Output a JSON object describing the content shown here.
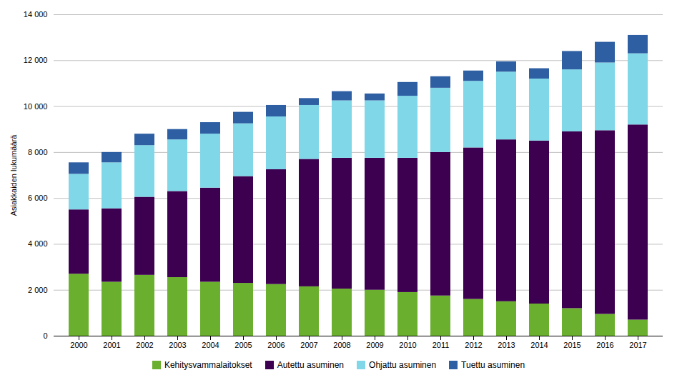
{
  "chart_data": {
    "type": "bar",
    "stacked": true,
    "ylabel": "Asiakkaiden lukumäärä",
    "categories": [
      "2000",
      "2001",
      "2002",
      "2003",
      "2004",
      "2005",
      "2006",
      "2007",
      "2008",
      "2009",
      "2010",
      "2011",
      "2012",
      "2013",
      "2014",
      "2015",
      "2016",
      "2017"
    ],
    "series": [
      {
        "name": "Kehitysvammalaitokset",
        "color": "#6aaf2e",
        "values": [
          2700,
          2350,
          2650,
          2550,
          2350,
          2300,
          2250,
          2150,
          2050,
          2000,
          1900,
          1750,
          1600,
          1500,
          1400,
          1200,
          950,
          700
        ]
      },
      {
        "name": "Autettu asuminen",
        "color": "#3d0050",
        "values": [
          2800,
          3200,
          3400,
          3750,
          4100,
          4650,
          5000,
          5550,
          5700,
          5750,
          5850,
          6250,
          6600,
          7050,
          7100,
          7700,
          8000,
          8500
        ]
      },
      {
        "name": "Ohjattu asuminen",
        "color": "#7fd7e8",
        "values": [
          1550,
          2000,
          2250,
          2250,
          2350,
          2300,
          2300,
          2350,
          2500,
          2500,
          2700,
          2800,
          2900,
          2950,
          2700,
          2700,
          2950,
          3100
        ]
      },
      {
        "name": "Tuettu asuminen",
        "color": "#2e5fa3",
        "values": [
          500,
          450,
          500,
          450,
          500,
          500,
          500,
          300,
          400,
          300,
          600,
          500,
          450,
          450,
          450,
          800,
          900,
          800
        ]
      }
    ],
    "ylim": [
      0,
      14000
    ],
    "yticks": [
      0,
      {
        "value": 2000,
        "label": "2 000"
      },
      {
        "value": 4000,
        "label": "4 000"
      },
      {
        "value": 6000,
        "label": "6 000"
      },
      {
        "value": 8000,
        "label": "8 000"
      },
      {
        "value": 10000,
        "label": "10 000"
      },
      {
        "value": 12000,
        "label": "12 000"
      },
      {
        "value": 14000,
        "label": "14 000"
      }
    ],
    "grid": true,
    "legend": "bottom"
  }
}
